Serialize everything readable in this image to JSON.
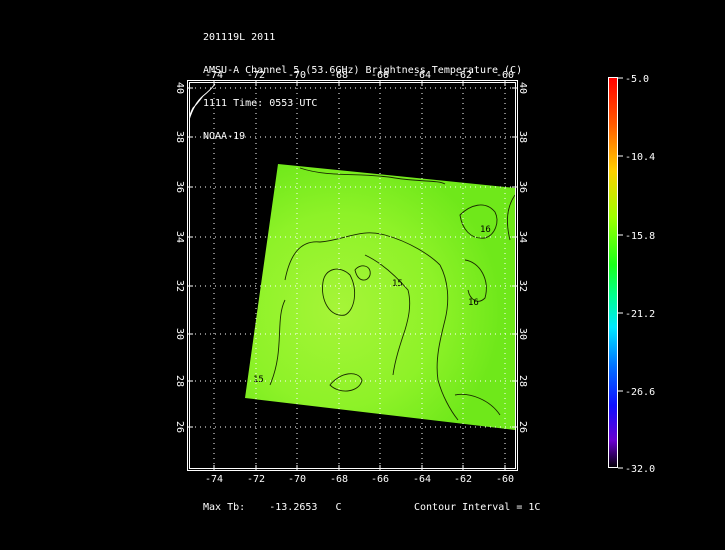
{
  "header": {
    "line1": "201119L 2011",
    "line2": "AMSU-A Channel 5 (53.6GHz) Brightness Temperature (C)",
    "line3": "1111 Time: 0553 UTC",
    "line4": "NOAA-19"
  },
  "axes": {
    "lon_ticks": [
      "-74",
      "-72",
      "-70",
      "-68",
      "-66",
      "-64",
      "-62",
      "-60"
    ],
    "lat_ticks": [
      "40",
      "38",
      "36",
      "34",
      "32",
      "30",
      "28",
      "26"
    ]
  },
  "colorbar": {
    "labels": [
      "-5.0",
      "-10.4",
      "-15.8",
      "-21.2",
      "-26.6",
      "-32.0"
    ]
  },
  "contour_labels": [
    "16",
    "15",
    "16",
    "15"
  ],
  "footer": {
    "max_label": "Max Tb:",
    "max_value": "-13.2653",
    "max_unit": "C",
    "contour_interval": "Contour Interval = 1C"
  },
  "colors": {
    "field_green": "#7ef21a",
    "field_light": "#a6f538",
    "contour": "#1a2a00",
    "grid": "#ffffff"
  }
}
